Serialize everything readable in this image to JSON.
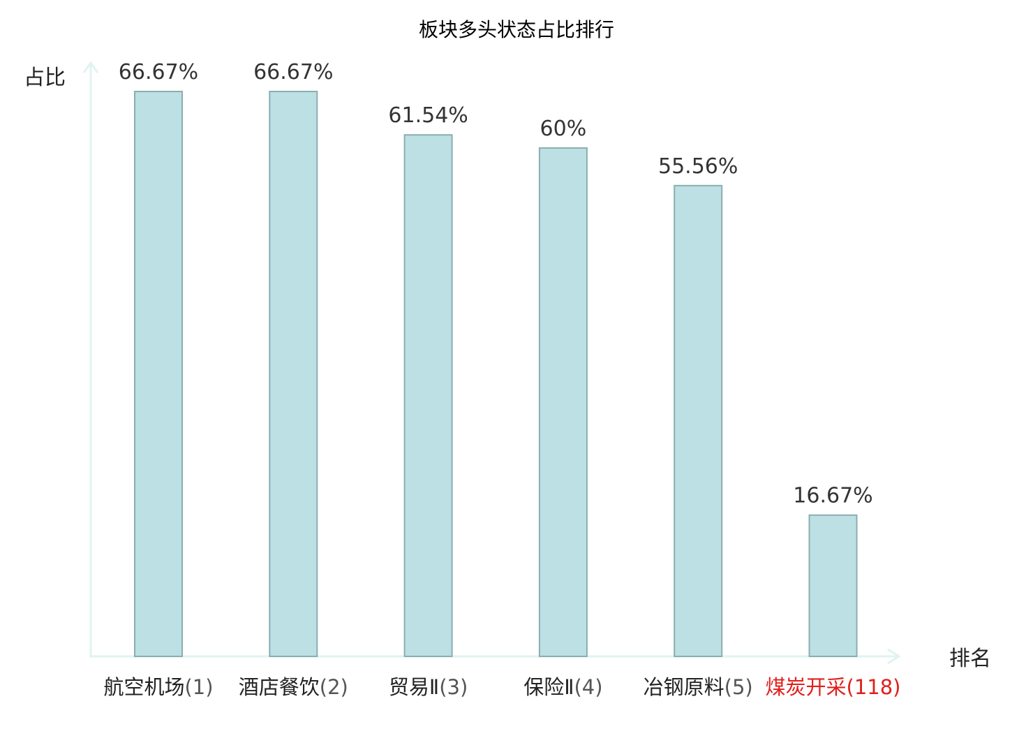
{
  "chart_data": {
    "type": "bar",
    "title": "板块多头状态占比排行",
    "xlabel": "排名",
    "ylabel": "占比",
    "ylim": [
      0,
      70
    ],
    "grid": false,
    "legend": "none",
    "categories": [
      {
        "name": "航空机场",
        "rank": "(1)",
        "highlight": false
      },
      {
        "name": "酒店餐饮",
        "rank": "(2)",
        "highlight": false
      },
      {
        "name": "贸易Ⅱ",
        "rank": "(3)",
        "highlight": false
      },
      {
        "name": "保险Ⅱ",
        "rank": "(4)",
        "highlight": false
      },
      {
        "name": "冶钢原料",
        "rank": "(5)",
        "highlight": false
      },
      {
        "name": "煤炭开采",
        "rank": "(118)",
        "highlight": true
      }
    ],
    "values": [
      66.67,
      66.67,
      61.54,
      60,
      55.56,
      16.67
    ],
    "labels": [
      "66.67%",
      "66.67%",
      "61.54%",
      "60%",
      "55.56%",
      "16.67%"
    ]
  },
  "colors": {
    "bar_fill": "#bce0e3",
    "bar_stroke": "#8aaeb0",
    "axis": "#e0f3f1",
    "text": "#333333",
    "title": "#000000",
    "category_text": "#222222",
    "highlight": "#e0201c"
  }
}
